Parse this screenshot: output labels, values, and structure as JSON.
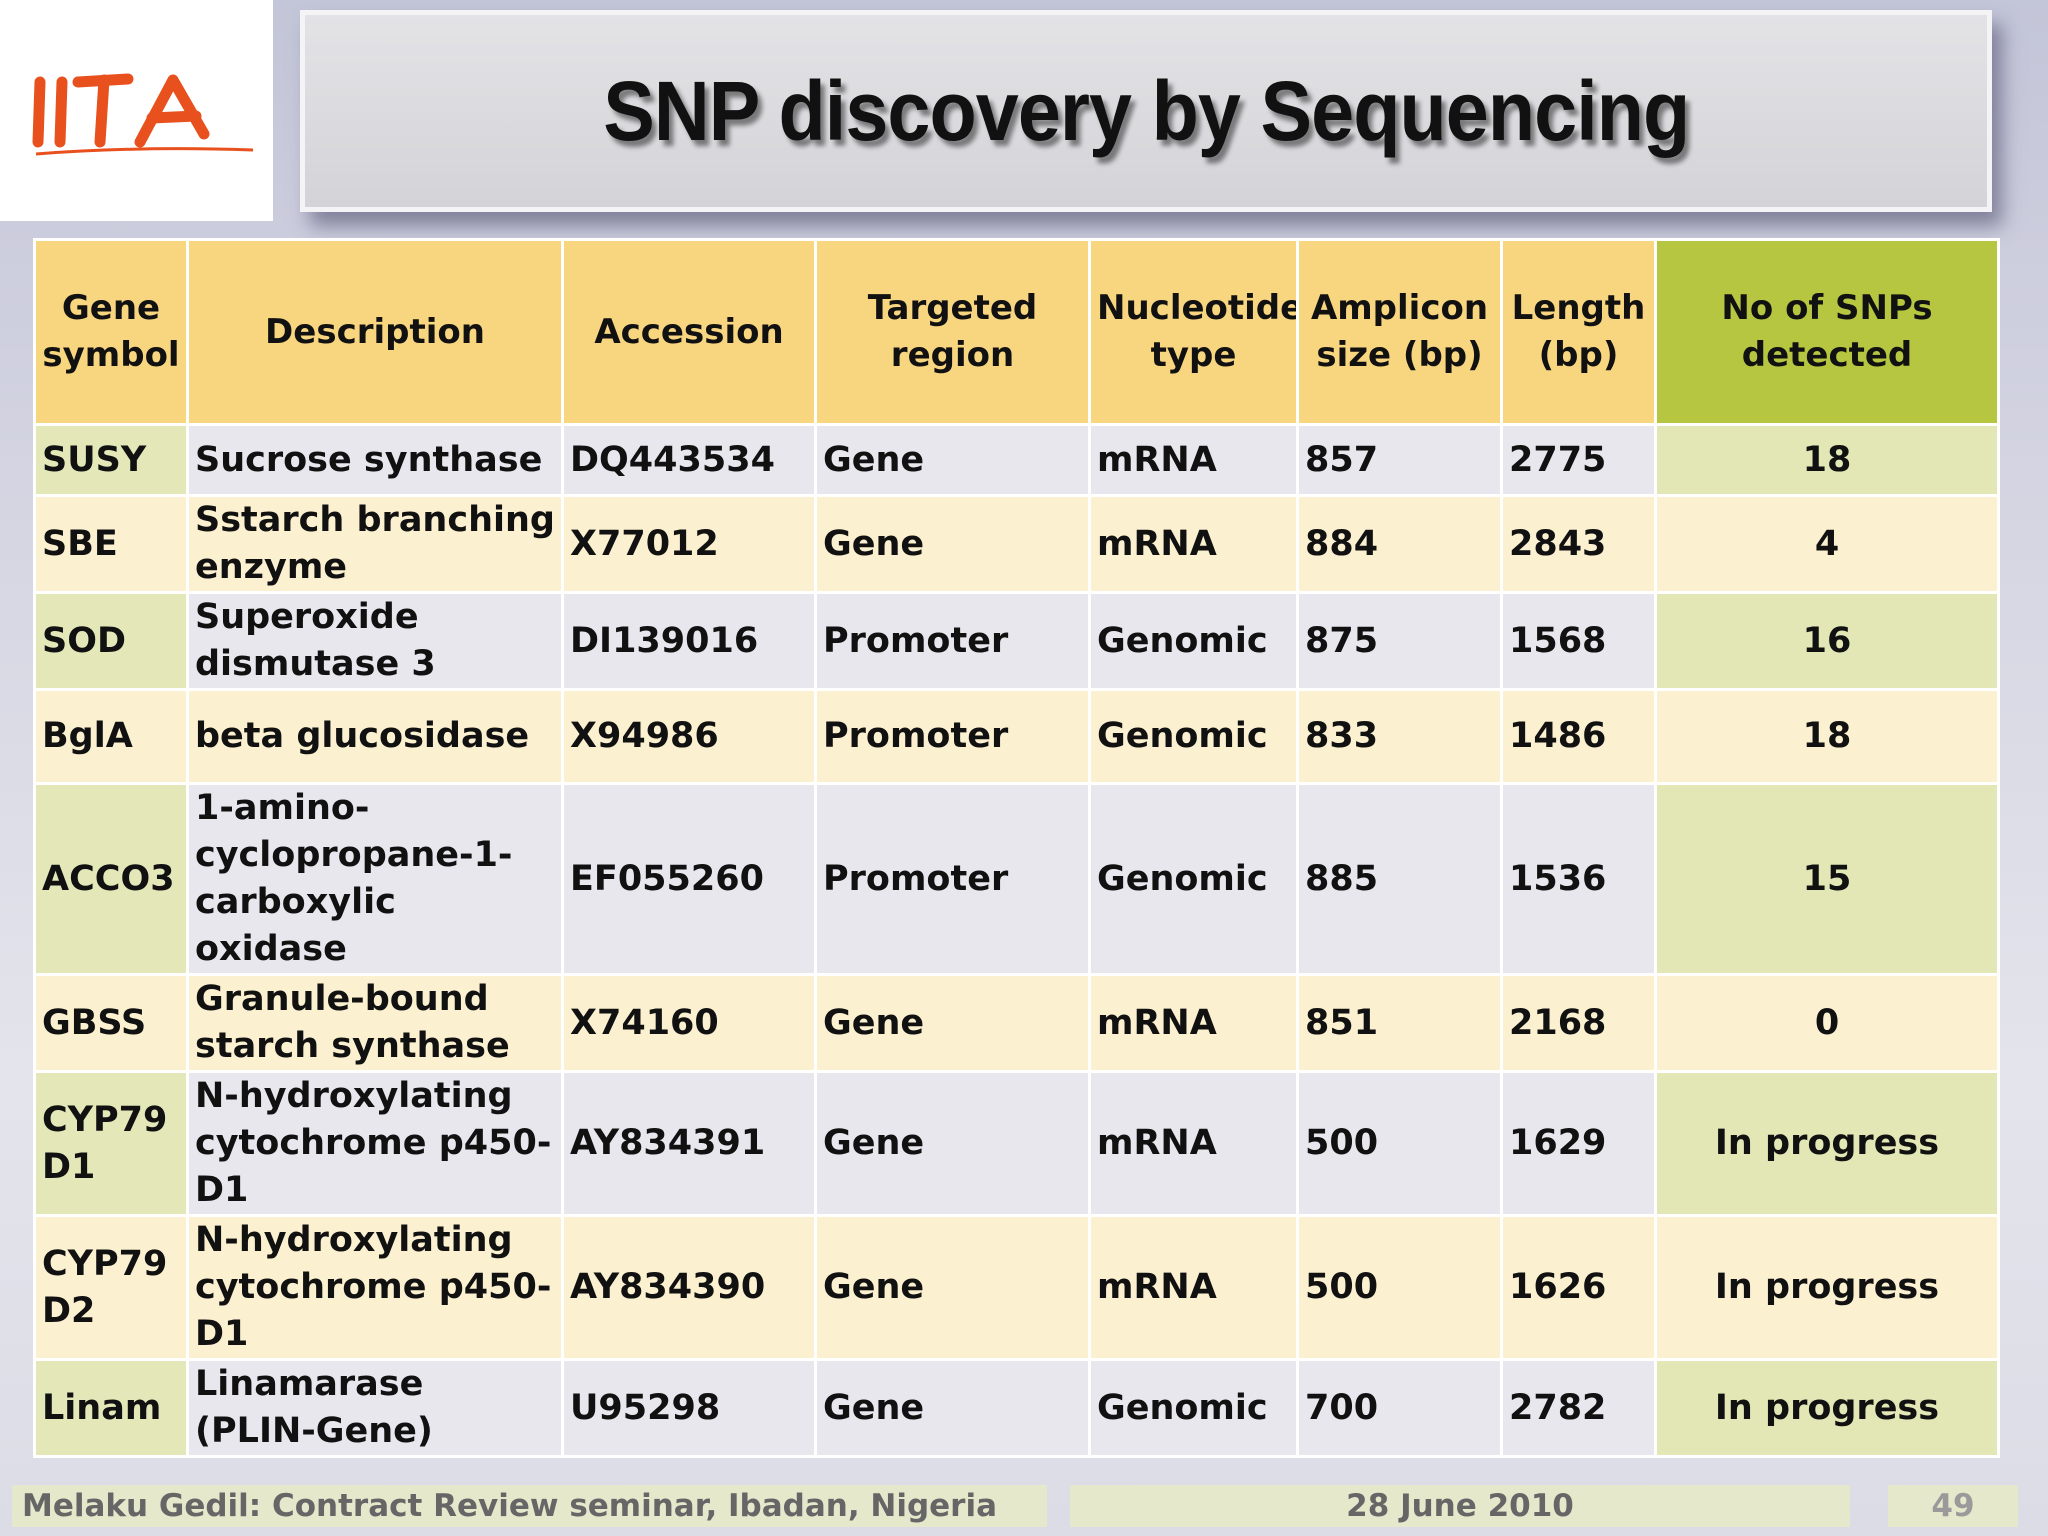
{
  "logo": {
    "text": "IITA",
    "color": "#e8501e"
  },
  "title": "SNP discovery by Sequencing",
  "table": {
    "headers": [
      "Gene symbol",
      "Description",
      "Accession",
      "Targeted region",
      "Nucleotide type",
      "Amplicon size (bp)",
      "Length (bp)",
      "No of SNPs detected"
    ],
    "rows": [
      [
        "SUSY",
        "Sucrose synthase",
        "DQ443534",
        "Gene",
        "mRNA",
        "857",
        "2775",
        "18"
      ],
      [
        "SBE",
        "Sstarch branching enzyme",
        "X77012",
        "Gene",
        "mRNA",
        "884",
        "2843",
        "4"
      ],
      [
        "SOD",
        "Superoxide dismutase 3",
        "DI139016",
        "Promoter",
        "Genomic",
        "875",
        "1568",
        "16"
      ],
      [
        "BglA",
        "beta glucosidase",
        "X94986",
        "Promoter",
        "Genomic",
        "833",
        "1486",
        "18"
      ],
      [
        "ACCO3",
        "1-amino-cyclopropane-1-carboxylic oxidase",
        "EF055260",
        "Promoter",
        "Genomic",
        "885",
        "1536",
        "15"
      ],
      [
        "GBSS",
        "Granule-bound starch synthase",
        "X74160",
        "Gene",
        "mRNA",
        "851",
        "2168",
        "0"
      ],
      [
        "CYP79 D1",
        "N-hydroxylating cytochrome p450-D1",
        "AY834391",
        "Gene",
        "mRNA",
        "500",
        "1629",
        "In progress"
      ],
      [
        "CYP79 D2",
        "N-hydroxylating cytochrome p450-D1",
        "AY834390",
        "Gene",
        "mRNA",
        "500",
        "1626",
        "In progress"
      ],
      [
        "Linam",
        "Linamarase (PLIN-Gene)",
        "U95298",
        "Gene",
        "Genomic",
        "700",
        "2782",
        "In progress"
      ]
    ]
  },
  "footer": {
    "left": "Melaku Gedil: Contract Review seminar,  Ibadan, Nigeria",
    "date": "28 June 2010",
    "page": "49"
  }
}
